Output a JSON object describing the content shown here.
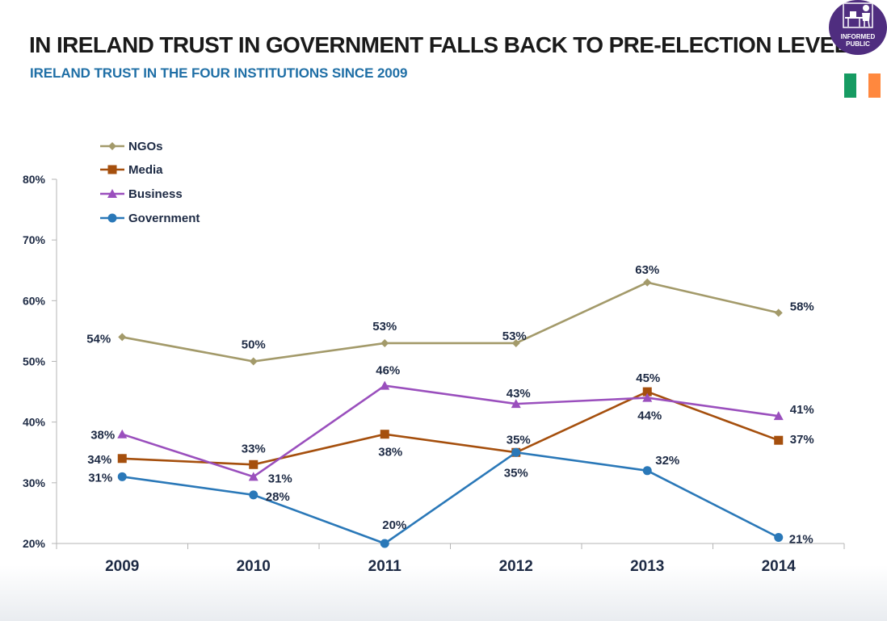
{
  "header": {
    "title": "IN IRELAND TRUST IN GOVERNMENT FALLS BACK TO PRE-ELECTION LEVELS",
    "subtitle": "IRELAND TRUST IN THE FOUR INSTITUTIONS SINCE 2009"
  },
  "logo": {
    "line1": "INFORMED",
    "line2": "PUBLIC",
    "icon": "person-at-desk-icon",
    "color": "#4f2d7f"
  },
  "flag": {
    "icon": "ireland-flag-icon",
    "colors": [
      "#169b62",
      "#ffffff",
      "#ff883e"
    ]
  },
  "chart_data": {
    "type": "line",
    "categories": [
      "2009",
      "2010",
      "2011",
      "2012",
      "2013",
      "2014"
    ],
    "ylim": [
      20,
      80
    ],
    "yticks": [
      "20%",
      "30%",
      "40%",
      "50%",
      "60%",
      "70%",
      "80%"
    ],
    "grid": false,
    "legend_position": "top-left",
    "series": [
      {
        "name": "NGOs",
        "color": "#a39a6a",
        "marker": "diamond",
        "values": [
          54,
          50,
          53,
          53,
          63,
          58
        ],
        "labels": [
          "54%",
          "50%",
          "53%",
          "53%",
          "63%",
          "58%"
        ]
      },
      {
        "name": "Media",
        "color": "#a54f0d",
        "marker": "square",
        "values": [
          34,
          33,
          38,
          35,
          45,
          37
        ],
        "labels": [
          "34%",
          "33%",
          "38%",
          "35%",
          "45%",
          "37%"
        ]
      },
      {
        "name": "Business",
        "color": "#9a4fbd",
        "marker": "triangle",
        "values": [
          38,
          31,
          46,
          43,
          44,
          41
        ],
        "labels": [
          "38%",
          "31%",
          "46%",
          "43%",
          "44%",
          "41%"
        ]
      },
      {
        "name": "Government",
        "color": "#2a78b8",
        "marker": "circle",
        "values": [
          31,
          28,
          20,
          35,
          32,
          21
        ],
        "labels": [
          "31%",
          "28%",
          "20%",
          "35%",
          "32%",
          "21%"
        ]
      }
    ]
  }
}
